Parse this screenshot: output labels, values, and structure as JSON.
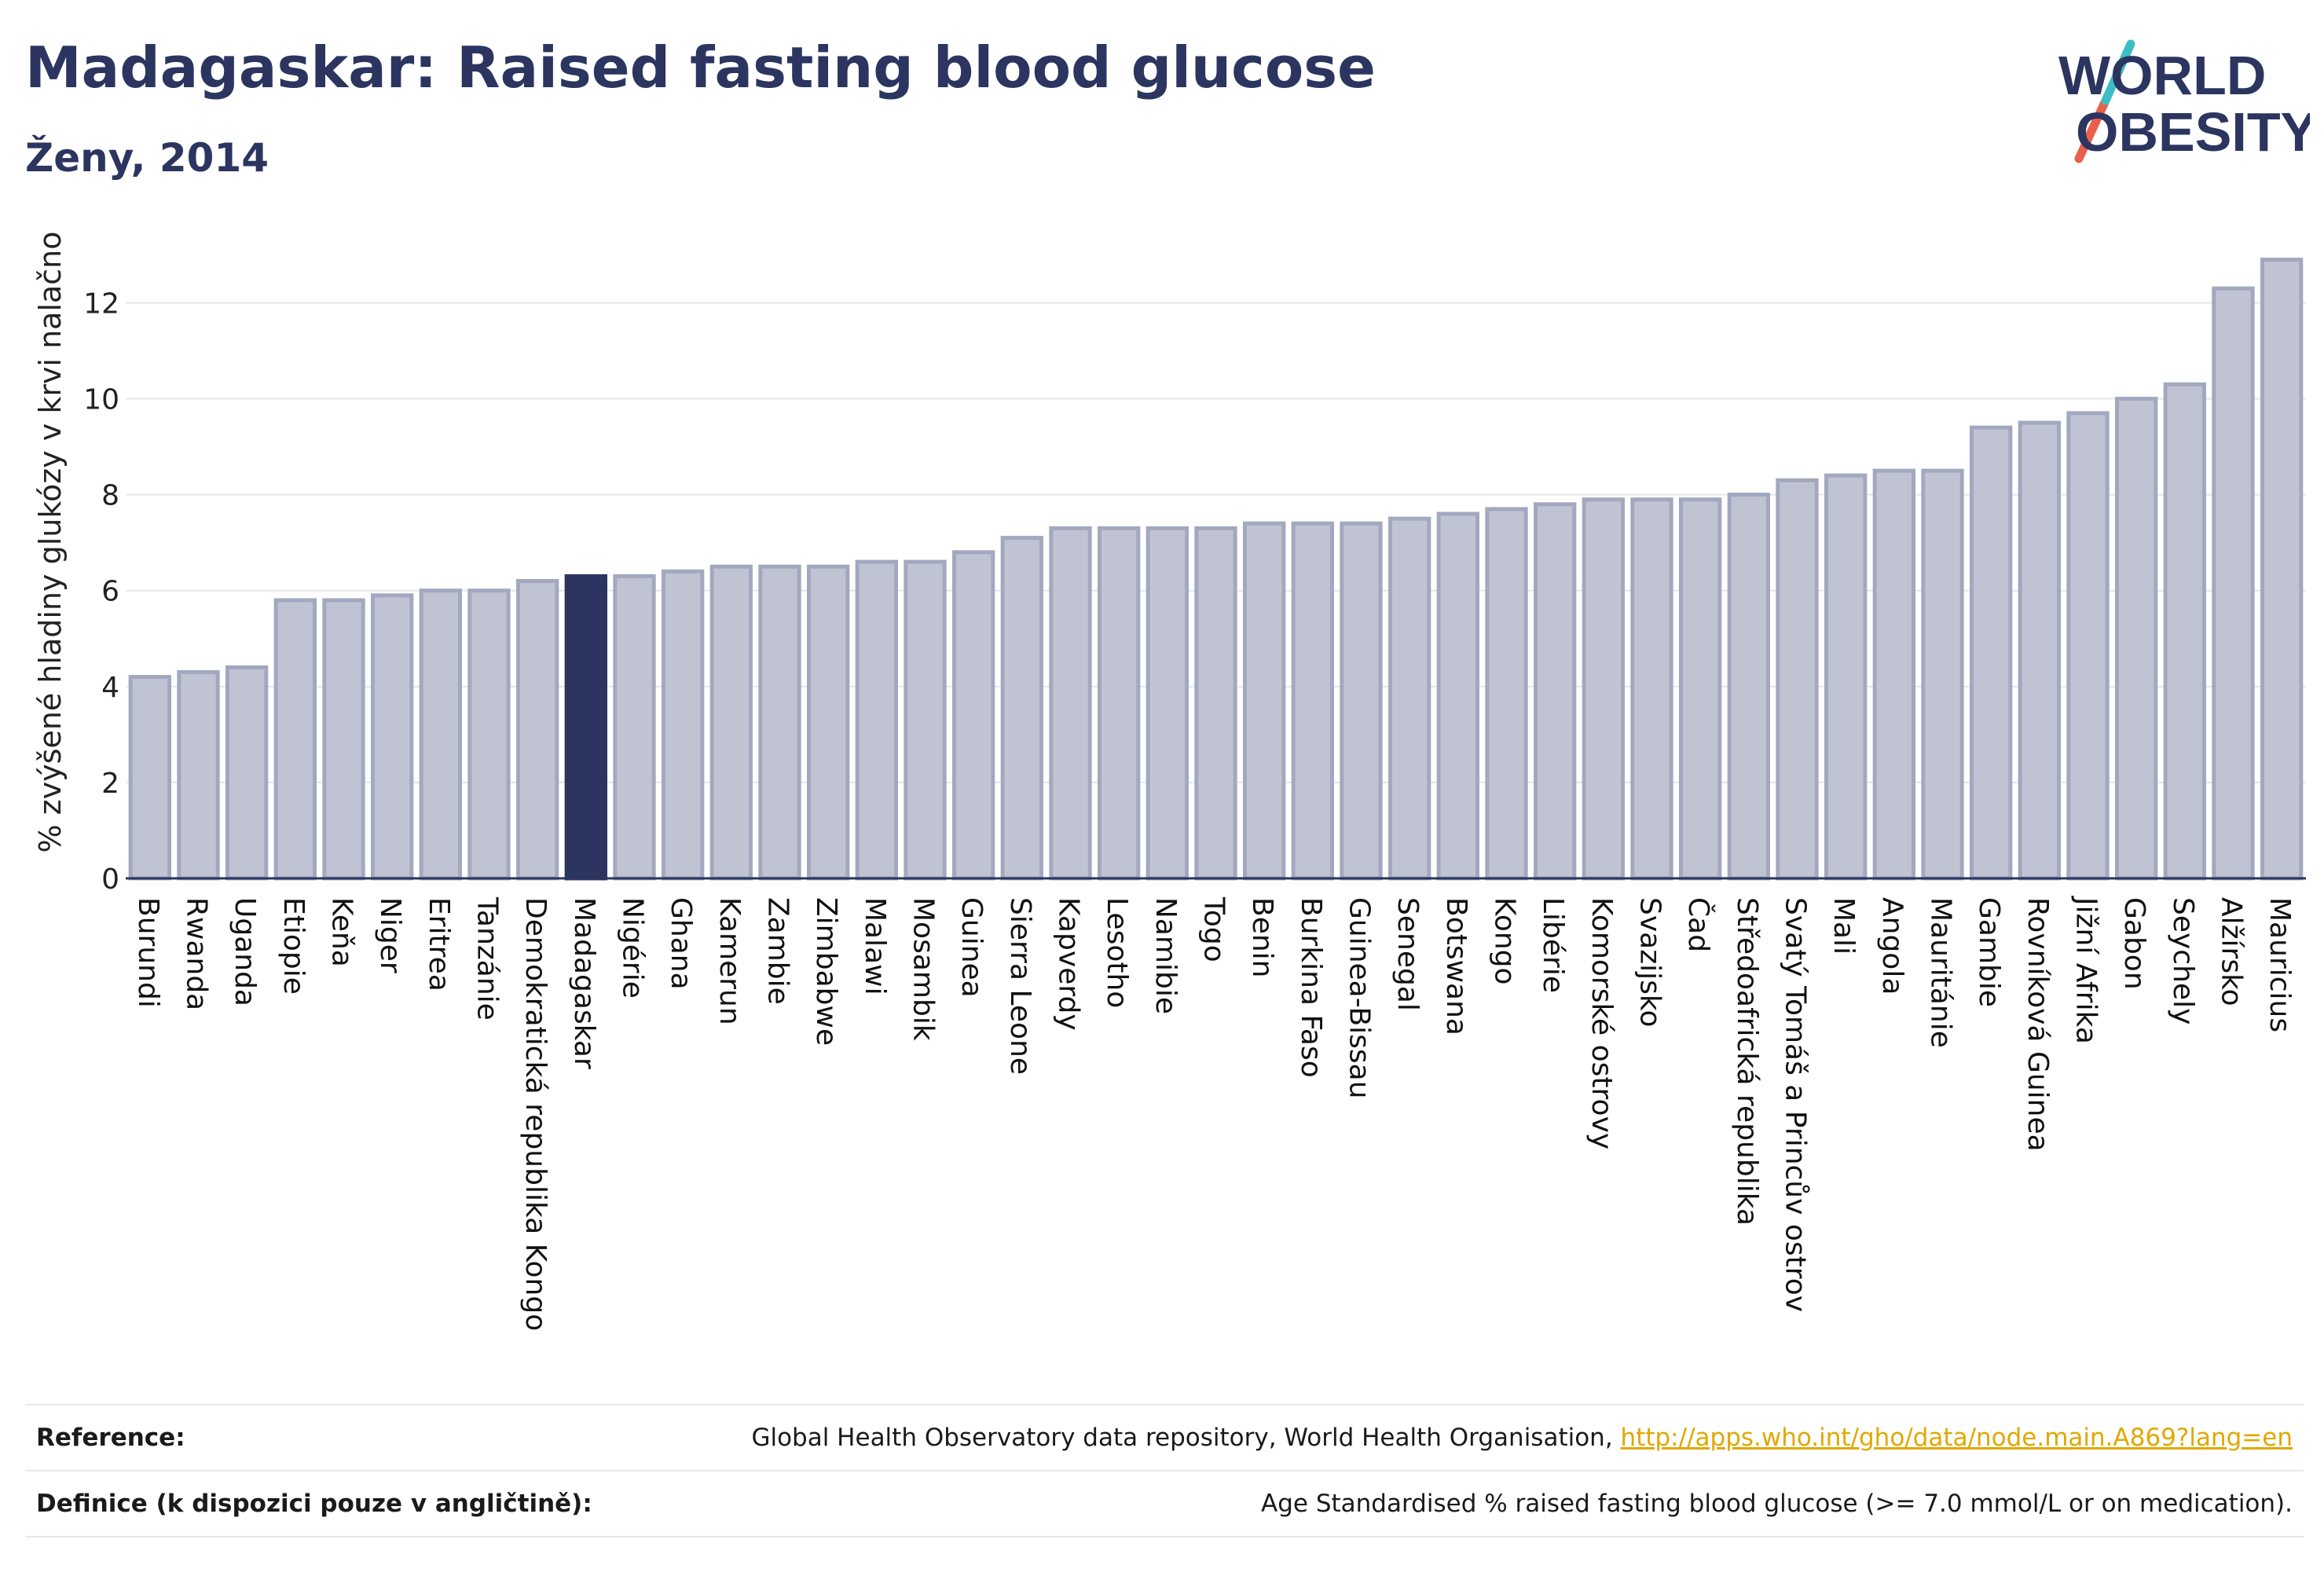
{
  "header": {
    "title": "Madagaskar: Raised fasting blood glucose",
    "subtitle": "Ženy, 2014"
  },
  "logo": {
    "line1": "WORLD",
    "line2": "OBESITY",
    "colors": {
      "text": "#2b3560",
      "slash_teal": "#3bbfc4",
      "slash_red": "#e8604c"
    }
  },
  "chart_data": {
    "type": "bar",
    "title": "Madagaskar: Raised fasting blood glucose",
    "subtitle": "Ženy, 2014",
    "xlabel": "",
    "ylabel": "% zvýšené hladiny glukózy v krvi nalačno",
    "ylim": [
      0,
      13.4
    ],
    "yticks": [
      0,
      2,
      4,
      6,
      8,
      10,
      12
    ],
    "grid": true,
    "highlight": "Madagaskar",
    "colors": {
      "bar": "#c0c4d2",
      "bar_edge": "#a2a8bf",
      "highlight": "#2b3560"
    },
    "categories": [
      "Burundi",
      "Rwanda",
      "Uganda",
      "Etiopie",
      "Keňa",
      "Niger",
      "Eritrea",
      "Tanzánie",
      "Demokratická republika Kongo",
      "Madagaskar",
      "Nigérie",
      "Ghana",
      "Kamerun",
      "Zambie",
      "Zimbabwe",
      "Malawi",
      "Mosambik",
      "Guinea",
      "Sierra Leone",
      "Kapverdy",
      "Lesotho",
      "Namibie",
      "Togo",
      "Benin",
      "Burkina Faso",
      "Guinea-Bissau",
      "Senegal",
      "Botswana",
      "Kongo",
      "Libérie",
      "Komorské ostrovy",
      "Svazijsko",
      "Čad",
      "Středoafrická republika",
      "Svatý Tomáš a Princův ostrov",
      "Mali",
      "Angola",
      "Mauritánie",
      "Gambie",
      "Rovníková Guinea",
      "Jižní Afrika",
      "Gabon",
      "Seychely",
      "Alžírsko",
      "Mauricius"
    ],
    "values": [
      4.2,
      4.3,
      4.4,
      5.8,
      5.8,
      5.9,
      6.0,
      6.0,
      6.2,
      6.3,
      6.3,
      6.4,
      6.5,
      6.5,
      6.5,
      6.6,
      6.6,
      6.8,
      7.1,
      7.3,
      7.3,
      7.3,
      7.3,
      7.4,
      7.4,
      7.4,
      7.5,
      7.6,
      7.7,
      7.8,
      7.9,
      7.9,
      7.9,
      8.0,
      8.3,
      8.4,
      8.5,
      8.5,
      9.4,
      9.5,
      9.7,
      10.0,
      10.3,
      12.3,
      12.9
    ]
  },
  "reference": {
    "rows": [
      {
        "key": "Reference:",
        "text": "Global Health Observatory data repository, World Health Organisation, ",
        "link": "http://apps.who.int/gho/data/node.main.A869?lang=en"
      },
      {
        "key": "Definice (k dispozici pouze v angličtině):",
        "text": "Age Standardised % raised fasting blood glucose (>= 7.0 mmol/L or on medication).",
        "link": ""
      }
    ]
  }
}
